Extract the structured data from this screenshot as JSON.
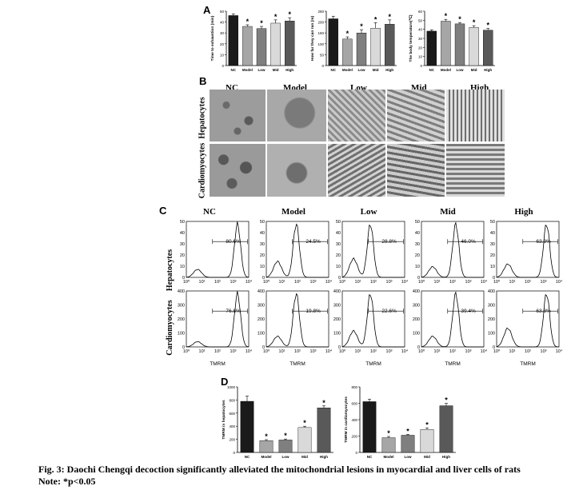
{
  "panel_letters": {
    "a": "A",
    "b": "B",
    "c": "C",
    "d": "D"
  },
  "groups": [
    "NC",
    "Model",
    "Low",
    "Mid",
    "High"
  ],
  "row_labels": {
    "hepatocytes": "Hepatocytes",
    "cardiomyocytes": "Cardiomyocytes"
  },
  "flow": {
    "xlabel": "TMRM",
    "x_tick_labels": [
      "10⁰",
      "10¹",
      "10²",
      "10³",
      "10⁴"
    ],
    "hep_yticks": [
      "0",
      "10",
      "20",
      "30",
      "40",
      "50"
    ],
    "card_yticks": [
      "0",
      "100",
      "200",
      "300",
      "400"
    ],
    "hep_percent": [
      "80.6%",
      "24.5%",
      "28.8%",
      "46.0%",
      "63.3%"
    ],
    "card_percent": [
      "76.8%",
      "19.8%",
      "22.6%",
      "39.4%",
      "63.3%"
    ]
  },
  "caption": {
    "title": "Fig. 3: Daochi Chengqi decoction significantly alleviated the mitochondrial lesions in myocardial and liver cells of rats",
    "note": "Note: *p<0.05"
  },
  "chart_data": [
    {
      "type": "bar",
      "panel": "A",
      "categories": [
        "NC",
        "Model",
        "Low",
        "Mid",
        "High"
      ],
      "values": [
        46,
        36,
        34,
        39,
        41
      ],
      "errors": [
        1.5,
        1.5,
        2,
        3,
        3
      ],
      "significant": [
        false,
        true,
        true,
        true,
        true
      ],
      "ylabel": "Time to exhaustion (min)",
      "ylim": [
        0,
        50
      ],
      "yticks": [
        0,
        10,
        20,
        30,
        40,
        50
      ],
      "colors": [
        "#1a1a1a",
        "#a6a6a6",
        "#7f7f7f",
        "#d9d9d9",
        "#595959"
      ]
    },
    {
      "type": "bar",
      "panel": "A",
      "categories": [
        "NC",
        "Model",
        "Low",
        "Mid",
        "High"
      ],
      "values": [
        215,
        122,
        150,
        172,
        190
      ],
      "errors": [
        12,
        10,
        15,
        25,
        20
      ],
      "significant": [
        false,
        true,
        true,
        true,
        true
      ],
      "ylabel": "How far they can run (m)",
      "ylim": [
        0,
        250
      ],
      "yticks": [
        0,
        50,
        100,
        150,
        200,
        250
      ],
      "colors": [
        "#1a1a1a",
        "#a6a6a6",
        "#7f7f7f",
        "#d9d9d9",
        "#595959"
      ]
    },
    {
      "type": "bar",
      "panel": "A",
      "categories": [
        "NC",
        "Model",
        "Low",
        "Mid",
        "High"
      ],
      "values": [
        38,
        49,
        46,
        42,
        39
      ],
      "errors": [
        1.5,
        2,
        1.5,
        2,
        2
      ],
      "significant": [
        false,
        true,
        true,
        true,
        true
      ],
      "ylabel": "The body temperature(℃)",
      "ylim": [
        0,
        60
      ],
      "yticks": [
        0,
        10,
        20,
        30,
        40,
        50,
        60
      ],
      "colors": [
        "#1a1a1a",
        "#a6a6a6",
        "#7f7f7f",
        "#d9d9d9",
        "#595959"
      ]
    },
    {
      "type": "bar",
      "panel": "D",
      "categories": [
        "NC",
        "Model",
        "Low",
        "Mid",
        "High"
      ],
      "values": [
        780,
        180,
        190,
        380,
        680
      ],
      "errors": [
        80,
        15,
        15,
        20,
        30
      ],
      "significant": [
        false,
        true,
        true,
        true,
        true
      ],
      "ylabel": "TMRM in hepatocytes",
      "ylim": [
        0,
        1000
      ],
      "yticks": [
        0,
        200,
        400,
        600,
        800,
        1000
      ],
      "colors": [
        "#1a1a1a",
        "#a6a6a6",
        "#7f7f7f",
        "#d9d9d9",
        "#595959"
      ]
    },
    {
      "type": "bar",
      "panel": "D",
      "categories": [
        "NC",
        "Model",
        "Low",
        "Mid",
        "High"
      ],
      "values": [
        620,
        180,
        210,
        280,
        570
      ],
      "errors": [
        30,
        15,
        10,
        20,
        30
      ],
      "significant": [
        false,
        true,
        true,
        true,
        true
      ],
      "ylabel": "TMRM in cardiomyocytes",
      "ylim": [
        0,
        800
      ],
      "yticks": [
        0,
        200,
        400,
        600,
        800
      ],
      "colors": [
        "#1a1a1a",
        "#a6a6a6",
        "#7f7f7f",
        "#d9d9d9",
        "#595959"
      ]
    }
  ]
}
